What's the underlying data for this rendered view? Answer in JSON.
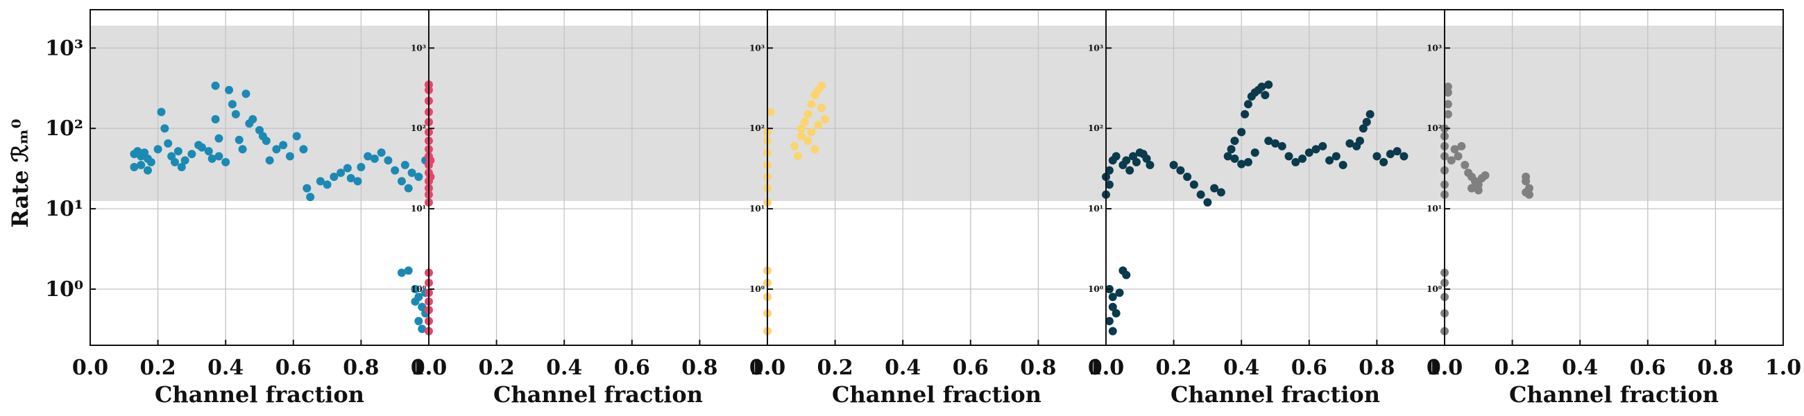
{
  "chart_data": {
    "type": "scatter",
    "y_scale": "log",
    "grid": true,
    "ylabel": "Rate  ℛₘ⁰",
    "shaded_band": {
      "y": [
        12.5,
        1900
      ]
    },
    "panels": [
      {
        "xlabel": "Channel fraction",
        "xlim": [
          0,
          1
        ],
        "ylim": [
          0.2,
          3000
        ],
        "xticks": [
          "0.0",
          "0.2",
          "0.4",
          "0.6",
          "0.8",
          "1.0"
        ],
        "yticks": [
          {
            "value": 1,
            "label": "10⁰"
          },
          {
            "value": 10,
            "label": "10¹"
          },
          {
            "value": 100,
            "label": "10²"
          },
          {
            "value": 1000,
            "label": "10³"
          }
        ],
        "color": "#1a8ab4",
        "points": [
          [
            0.13,
            48
          ],
          [
            0.14,
            52
          ],
          [
            0.15,
            45
          ],
          [
            0.16,
            50
          ],
          [
            0.17,
            42
          ],
          [
            0.18,
            38
          ],
          [
            0.15,
            35
          ],
          [
            0.13,
            33
          ],
          [
            0.17,
            30
          ],
          [
            0.2,
            55
          ],
          [
            0.21,
            160
          ],
          [
            0.22,
            100
          ],
          [
            0.23,
            65
          ],
          [
            0.24,
            45
          ],
          [
            0.25,
            38
          ],
          [
            0.26,
            52
          ],
          [
            0.27,
            33
          ],
          [
            0.28,
            40
          ],
          [
            0.3,
            48
          ],
          [
            0.32,
            62
          ],
          [
            0.33,
            58
          ],
          [
            0.35,
            52
          ],
          [
            0.36,
            42
          ],
          [
            0.37,
            340
          ],
          [
            0.37,
            130
          ],
          [
            0.38,
            75
          ],
          [
            0.38,
            45
          ],
          [
            0.4,
            38
          ],
          [
            0.41,
            300
          ],
          [
            0.42,
            200
          ],
          [
            0.43,
            150
          ],
          [
            0.44,
            72
          ],
          [
            0.45,
            55
          ],
          [
            0.46,
            270
          ],
          [
            0.47,
            115
          ],
          [
            0.48,
            130
          ],
          [
            0.5,
            95
          ],
          [
            0.51,
            80
          ],
          [
            0.52,
            70
          ],
          [
            0.53,
            40
          ],
          [
            0.55,
            55
          ],
          [
            0.57,
            62
          ],
          [
            0.59,
            45
          ],
          [
            0.61,
            80
          ],
          [
            0.63,
            55
          ],
          [
            0.64,
            18
          ],
          [
            0.65,
            14
          ],
          [
            0.68,
            22
          ],
          [
            0.7,
            20
          ],
          [
            0.72,
            25
          ],
          [
            0.74,
            28
          ],
          [
            0.76,
            32
          ],
          [
            0.77,
            24
          ],
          [
            0.79,
            22
          ],
          [
            0.8,
            33
          ],
          [
            0.82,
            45
          ],
          [
            0.84,
            42
          ],
          [
            0.86,
            50
          ],
          [
            0.88,
            40
          ],
          [
            0.9,
            30
          ],
          [
            0.92,
            22
          ],
          [
            0.93,
            35
          ],
          [
            0.94,
            18
          ],
          [
            0.95,
            28
          ],
          [
            0.97,
            25
          ],
          [
            0.99,
            40
          ],
          [
            0.92,
            1.6
          ],
          [
            0.94,
            1.7
          ],
          [
            0.96,
            1.0
          ],
          [
            0.97,
            0.8
          ],
          [
            0.98,
            0.6
          ],
          [
            0.99,
            0.5
          ],
          [
            0.97,
            0.4
          ],
          [
            0.98,
            0.32
          ],
          [
            0.99,
            0.9
          ],
          [
            0.96,
            0.7
          ]
        ]
      },
      {
        "xlabel": "Channel fraction",
        "xlim": [
          0,
          1
        ],
        "ylim": [
          0.2,
          3000
        ],
        "xticks": [
          "0.0",
          "0.2",
          "0.4",
          "0.6",
          "0.8",
          "1.0"
        ],
        "yticks": [
          {
            "value": 1,
            "label": "10⁰"
          },
          {
            "value": 10,
            "label": "10¹"
          },
          {
            "value": 100,
            "label": "10²"
          },
          {
            "value": 1000,
            "label": "10³"
          }
        ],
        "color": "#e8446a",
        "points": [
          [
            0.0,
            12
          ],
          [
            0.0,
            15
          ],
          [
            0.0,
            18
          ],
          [
            0.0,
            22
          ],
          [
            0.0,
            28
          ],
          [
            0.0,
            35
          ],
          [
            0.0,
            45
          ],
          [
            0.0,
            55
          ],
          [
            0.0,
            70
          ],
          [
            0.0,
            90
          ],
          [
            0.0,
            120
          ],
          [
            0.0,
            160
          ],
          [
            0.0,
            220
          ],
          [
            0.0,
            300
          ],
          [
            0.0,
            350
          ],
          [
            0.005,
            40
          ],
          [
            0.005,
            25
          ],
          [
            0.0,
            1.6
          ],
          [
            0.0,
            1.2
          ],
          [
            0.0,
            0.9
          ],
          [
            0.0,
            0.7
          ],
          [
            0.0,
            0.55
          ],
          [
            0.0,
            0.4
          ],
          [
            0.0,
            0.3
          ]
        ]
      },
      {
        "xlabel": "Channel fraction",
        "xlim": [
          0,
          1
        ],
        "ylim": [
          0.2,
          3000
        ],
        "xticks": [
          "0.0",
          "0.2",
          "0.4",
          "0.6",
          "0.8",
          "1.0"
        ],
        "yticks": [
          {
            "value": 1,
            "label": "10⁰"
          },
          {
            "value": 10,
            "label": "10¹"
          },
          {
            "value": 100,
            "label": "10²"
          },
          {
            "value": 1000,
            "label": "10³"
          }
        ],
        "color": "#fbd46d",
        "points": [
          [
            0.0,
            12
          ],
          [
            0.0,
            18
          ],
          [
            0.0,
            25
          ],
          [
            0.0,
            35
          ],
          [
            0.0,
            50
          ],
          [
            0.0,
            70
          ],
          [
            0.0,
            90
          ],
          [
            0.01,
            160
          ],
          [
            0.0,
            1.7
          ],
          [
            0.0,
            1.2
          ],
          [
            0.0,
            0.8
          ],
          [
            0.0,
            0.5
          ],
          [
            0.0,
            0.3
          ],
          [
            0.08,
            60
          ],
          [
            0.09,
            45
          ],
          [
            0.1,
            80
          ],
          [
            0.1,
            100
          ],
          [
            0.11,
            120
          ],
          [
            0.12,
            150
          ],
          [
            0.12,
            70
          ],
          [
            0.13,
            200
          ],
          [
            0.13,
            90
          ],
          [
            0.14,
            260
          ],
          [
            0.14,
            55
          ],
          [
            0.15,
            300
          ],
          [
            0.15,
            110
          ],
          [
            0.16,
            340
          ],
          [
            0.16,
            180
          ],
          [
            0.17,
            130
          ]
        ]
      },
      {
        "xlabel": "Channel fraction",
        "xlim": [
          0,
          1
        ],
        "ylim": [
          0.2,
          3000
        ],
        "xticks": [
          "0.0",
          "0.2",
          "0.4",
          "0.6",
          "0.8",
          "1.0"
        ],
        "yticks": [
          {
            "value": 1,
            "label": "10⁰"
          },
          {
            "value": 10,
            "label": "10¹"
          },
          {
            "value": 100,
            "label": "10²"
          },
          {
            "value": 1000,
            "label": "10³"
          }
        ],
        "color": "#0a3a4c",
        "points": [
          [
            0.0,
            15
          ],
          [
            0.01,
            20
          ],
          [
            0.0,
            25
          ],
          [
            0.01,
            30
          ],
          [
            0.02,
            40
          ],
          [
            0.03,
            45
          ],
          [
            0.05,
            35
          ],
          [
            0.06,
            40
          ],
          [
            0.07,
            30
          ],
          [
            0.08,
            45
          ],
          [
            0.09,
            38
          ],
          [
            0.1,
            50
          ],
          [
            0.11,
            48
          ],
          [
            0.12,
            42
          ],
          [
            0.13,
            35
          ],
          [
            0.2,
            35
          ],
          [
            0.22,
            30
          ],
          [
            0.24,
            25
          ],
          [
            0.26,
            20
          ],
          [
            0.28,
            15
          ],
          [
            0.3,
            12
          ],
          [
            0.32,
            18
          ],
          [
            0.34,
            16
          ],
          [
            0.36,
            45
          ],
          [
            0.37,
            55
          ],
          [
            0.38,
            70
          ],
          [
            0.4,
            90
          ],
          [
            0.41,
            150
          ],
          [
            0.42,
            200
          ],
          [
            0.43,
            250
          ],
          [
            0.44,
            280
          ],
          [
            0.45,
            300
          ],
          [
            0.46,
            330
          ],
          [
            0.47,
            260
          ],
          [
            0.48,
            350
          ],
          [
            0.38,
            42
          ],
          [
            0.4,
            36
          ],
          [
            0.42,
            38
          ],
          [
            0.44,
            50
          ],
          [
            0.48,
            70
          ],
          [
            0.5,
            65
          ],
          [
            0.52,
            60
          ],
          [
            0.54,
            45
          ],
          [
            0.56,
            38
          ],
          [
            0.58,
            42
          ],
          [
            0.6,
            50
          ],
          [
            0.62,
            55
          ],
          [
            0.64,
            60
          ],
          [
            0.66,
            40
          ],
          [
            0.68,
            45
          ],
          [
            0.7,
            35
          ],
          [
            0.72,
            65
          ],
          [
            0.74,
            60
          ],
          [
            0.75,
            70
          ],
          [
            0.76,
            100
          ],
          [
            0.77,
            120
          ],
          [
            0.78,
            150
          ],
          [
            0.8,
            45
          ],
          [
            0.82,
            38
          ],
          [
            0.84,
            48
          ],
          [
            0.86,
            52
          ],
          [
            0.88,
            45
          ],
          [
            0.01,
            1.0
          ],
          [
            0.02,
            0.8
          ],
          [
            0.02,
            0.6
          ],
          [
            0.03,
            0.5
          ],
          [
            0.01,
            0.4
          ],
          [
            0.02,
            0.3
          ],
          [
            0.05,
            1.7
          ],
          [
            0.06,
            1.5
          ],
          [
            0.04,
            0.9
          ]
        ]
      },
      {
        "xlabel": "Channel fraction",
        "xlim": [
          0,
          1
        ],
        "ylim": [
          0.2,
          3000
        ],
        "xticks": [
          "0.0",
          "0.2",
          "0.4",
          "0.6",
          "0.8",
          "1.0"
        ],
        "yticks": [
          {
            "value": 1,
            "label": "10⁰"
          },
          {
            "value": 10,
            "label": "10¹"
          },
          {
            "value": 100,
            "label": "10²"
          },
          {
            "value": 1000,
            "label": "10³"
          }
        ],
        "color": "#808080",
        "points": [
          [
            0.0,
            15
          ],
          [
            0.0,
            20
          ],
          [
            0.0,
            30
          ],
          [
            0.0,
            45
          ],
          [
            0.0,
            60
          ],
          [
            0.0,
            80
          ],
          [
            0.0,
            100
          ],
          [
            0.01,
            150
          ],
          [
            0.01,
            200
          ],
          [
            0.01,
            280
          ],
          [
            0.01,
            330
          ],
          [
            0.0,
            1.6
          ],
          [
            0.0,
            1.2
          ],
          [
            0.0,
            0.8
          ],
          [
            0.0,
            0.5
          ],
          [
            0.0,
            0.3
          ],
          [
            0.02,
            40
          ],
          [
            0.03,
            55
          ],
          [
            0.04,
            45
          ],
          [
            0.05,
            60
          ],
          [
            0.06,
            35
          ],
          [
            0.07,
            28
          ],
          [
            0.08,
            25
          ],
          [
            0.09,
            22
          ],
          [
            0.1,
            20
          ],
          [
            0.11,
            24
          ],
          [
            0.12,
            26
          ],
          [
            0.1,
            17
          ],
          [
            0.08,
            18
          ],
          [
            0.24,
            25
          ],
          [
            0.24,
            22
          ],
          [
            0.25,
            18
          ],
          [
            0.24,
            16
          ],
          [
            0.25,
            15
          ]
        ]
      }
    ]
  }
}
